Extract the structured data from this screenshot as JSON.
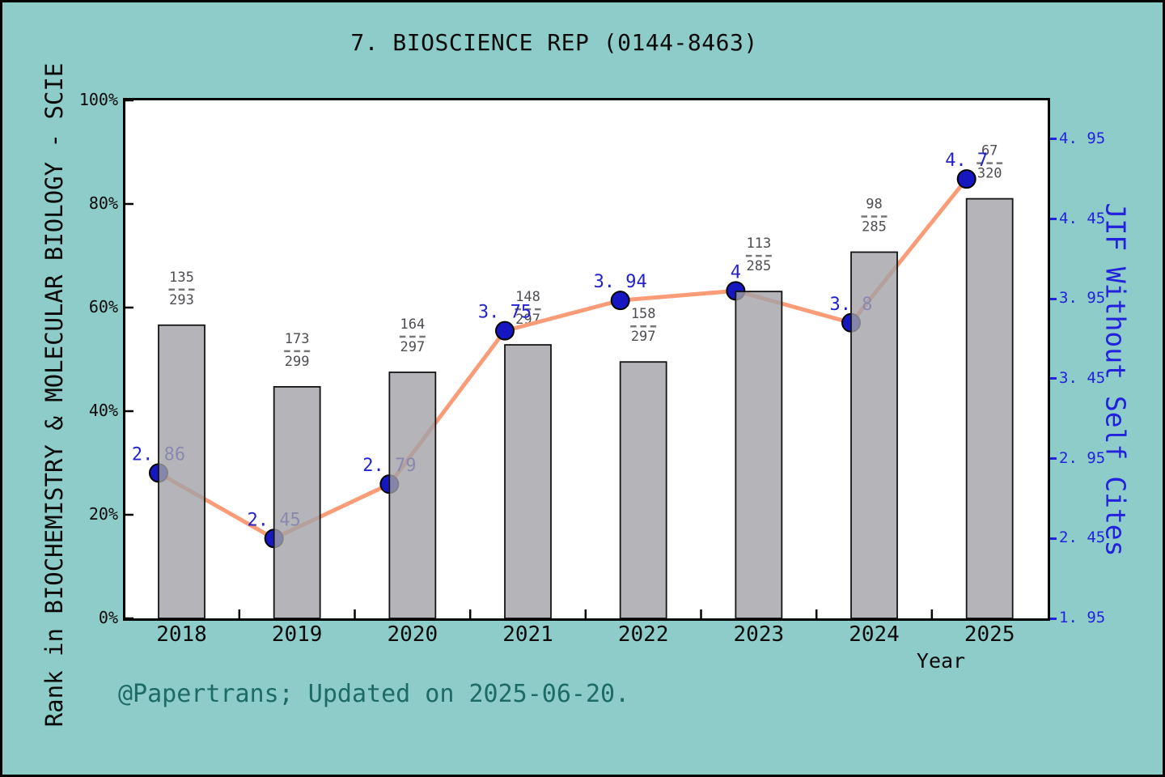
{
  "title": "7. BIOSCIENCE REP (0144-8463)",
  "footer": "@Papertrans; Updated on 2025-06-20.",
  "axes": {
    "left": {
      "label": "Rank in BIOCHEMISTRY & MOLECULAR BIOLOGY - SCIE",
      "tick_labels": [
        "0%",
        "20%",
        "40%",
        "60%",
        "80%",
        "100%"
      ],
      "tick_values": [
        0,
        20,
        40,
        60,
        80,
        100
      ]
    },
    "right": {
      "label": "JIF Without Self Cites",
      "tick_labels": [
        "1. 95",
        "2. 45",
        "2. 95",
        "3. 45",
        "3. 95",
        "4. 45",
        "4. 95"
      ],
      "tick_values": [
        1.95,
        2.45,
        2.95,
        3.45,
        3.95,
        4.45,
        4.95
      ]
    },
    "bottom": {
      "label": "Year",
      "tick_labels": [
        "2018",
        "2019",
        "2020",
        "2021",
        "2022",
        "2023",
        "2024",
        "2025"
      ]
    }
  },
  "chart_data": {
    "type": "bar+line",
    "title": "7. BIOSCIENCE REP (0144-8463)",
    "xlabel": "Year",
    "categories": [
      "2018",
      "2019",
      "2020",
      "2021",
      "2022",
      "2023",
      "2024",
      "2025"
    ],
    "left_axis_label": "Rank in BIOCHEMISTRY & MOLECULAR BIOLOGY - SCIE",
    "right_axis_label": "JIF Without Self Cites",
    "left_ylim": [
      0,
      100
    ],
    "right_ylim": [
      1.95,
      5.19
    ],
    "grid": false,
    "legend": "none",
    "bars": [
      {
        "year": "2018",
        "num": "135",
        "den": "293",
        "pct": 56.6
      },
      {
        "year": "2019",
        "num": "173",
        "den": "299",
        "pct": 44.7
      },
      {
        "year": "2020",
        "num": "164",
        "den": "297",
        "pct": 47.5
      },
      {
        "year": "2021",
        "num": "148",
        "den": "297",
        "pct": 52.8
      },
      {
        "year": "2022",
        "num": "158",
        "den": "297",
        "pct": 49.5
      },
      {
        "year": "2023",
        "num": "113",
        "den": "285",
        "pct": 63.1
      },
      {
        "year": "2024",
        "num": "98",
        "den": "285",
        "pct": 70.7
      },
      {
        "year": "2025",
        "num": "67",
        "den": "320",
        "pct": 81.0
      }
    ],
    "line": [
      {
        "year": "2018",
        "value": 2.86,
        "label": "2. 86"
      },
      {
        "year": "2019",
        "value": 2.45,
        "label": "2. 45"
      },
      {
        "year": "2020",
        "value": 2.79,
        "label": "2. 79"
      },
      {
        "year": "2021",
        "value": 3.75,
        "label": "3. 75"
      },
      {
        "year": "2022",
        "value": 3.94,
        "label": "3. 94"
      },
      {
        "year": "2023",
        "value": 4.0,
        "label": "4"
      },
      {
        "year": "2024",
        "value": 3.8,
        "label": "3. 8"
      },
      {
        "year": "2025",
        "value": 4.7,
        "label": "4. 7"
      }
    ]
  },
  "colors": {
    "background": "#8DCCC8",
    "plot_background": "#FFFFFF",
    "spine": "#000000",
    "bar_fill": "#A2A2A8",
    "bar_edge": "#141414",
    "line": "#FA9C77",
    "dot_fill": "#1717C1",
    "dot_edge": "#000000",
    "value_label": "#2323CE",
    "fraction_text": "#4D4D52",
    "fraction_dash": "#77777A",
    "right_axis": "#2222DC",
    "left_axis_text": "#0A0A0A",
    "footer_text": "#1D6A66"
  }
}
